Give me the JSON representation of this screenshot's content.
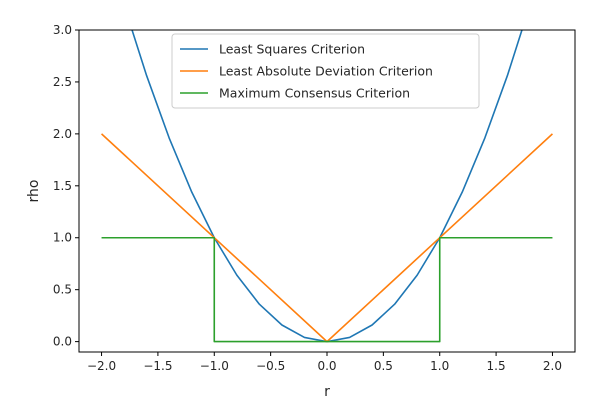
{
  "chart_data": {
    "type": "line",
    "xlabel": "r",
    "ylabel": "rho",
    "xlim": [
      -2.2,
      2.2
    ],
    "ylim": [
      -0.1,
      3.0
    ],
    "xticks": [
      -2.0,
      -1.5,
      -1.0,
      -0.5,
      0.0,
      0.5,
      1.0,
      1.5,
      2.0
    ],
    "xtick_labels": [
      "−2.0",
      "−1.5",
      "−1.0",
      "−0.5",
      "0.0",
      "0.5",
      "1.0",
      "1.5",
      "2.0"
    ],
    "yticks": [
      0.0,
      0.5,
      1.0,
      1.5,
      2.0,
      2.5,
      3.0
    ],
    "ytick_labels": [
      "0.0",
      "0.5",
      "1.0",
      "1.5",
      "2.0",
      "2.5",
      "3.0"
    ],
    "grid": false,
    "legend_position": "top-center",
    "series": [
      {
        "name": "Least Squares Criterion",
        "color": "#1f77b4",
        "x": [
          -2.0,
          -1.8,
          -1.6,
          -1.4,
          -1.2,
          -1.0,
          -0.8,
          -0.6,
          -0.4,
          -0.2,
          0.0,
          0.2,
          0.4,
          0.6,
          0.8,
          1.0,
          1.2,
          1.4,
          1.6,
          1.8,
          2.0
        ],
        "y": [
          4.0,
          3.24,
          2.56,
          1.96,
          1.44,
          1.0,
          0.64,
          0.36,
          0.16,
          0.04,
          0.0,
          0.04,
          0.16,
          0.36,
          0.64,
          1.0,
          1.44,
          1.96,
          2.56,
          3.24,
          4.0
        ]
      },
      {
        "name": "Least Absolute Deviation Criterion",
        "color": "#ff7f0e",
        "x": [
          -2.0,
          0.0,
          2.0
        ],
        "y": [
          2.0,
          0.0,
          2.0
        ]
      },
      {
        "name": "Maximum Consensus Criterion",
        "color": "#2ca02c",
        "x": [
          -2.0,
          -1.0,
          -1.0,
          1.0,
          1.0,
          2.0
        ],
        "y": [
          1.0,
          1.0,
          0.0,
          0.0,
          1.0,
          1.0
        ]
      }
    ]
  }
}
